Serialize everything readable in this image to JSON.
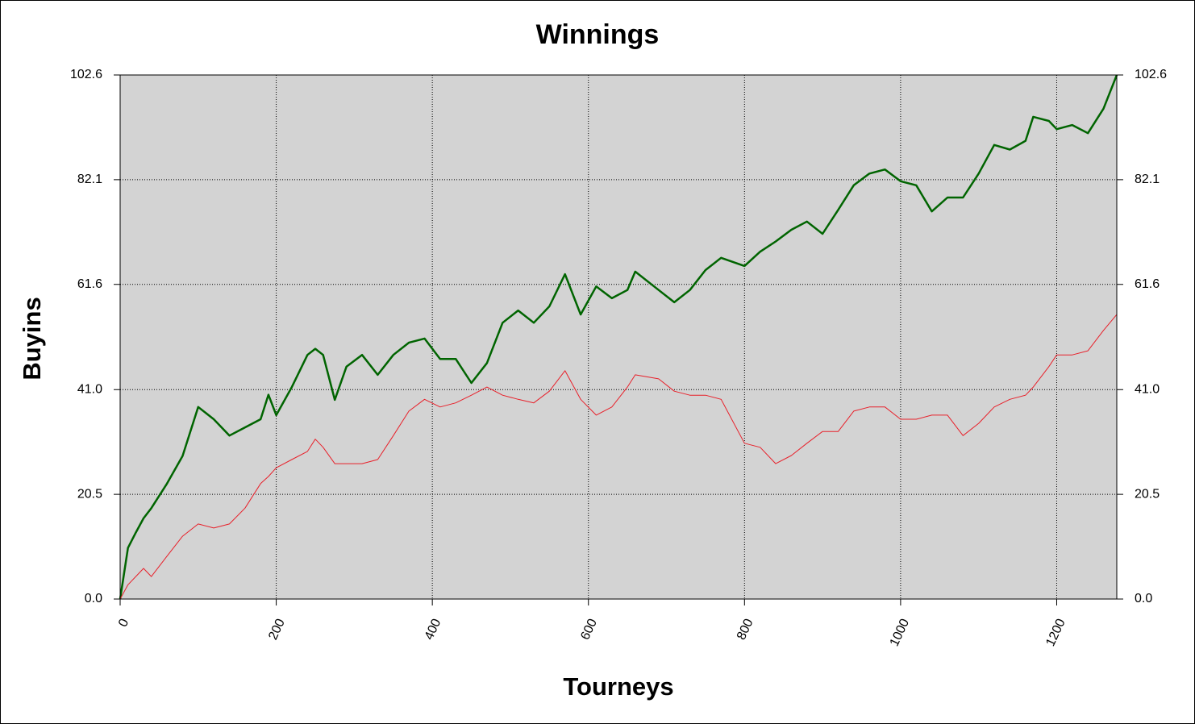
{
  "chart_data": {
    "type": "line",
    "title": "Winnings",
    "x_label": "Tourneys",
    "y_label": "Buyins",
    "x": [
      0,
      10,
      20,
      30,
      40,
      60,
      80,
      100,
      120,
      140,
      160,
      180,
      190,
      200,
      220,
      240,
      250,
      260,
      275,
      290,
      310,
      330,
      350,
      370,
      390,
      410,
      430,
      450,
      470,
      490,
      510,
      530,
      550,
      570,
      590,
      610,
      630,
      650,
      660,
      690,
      710,
      730,
      750,
      770,
      800,
      820,
      840,
      860,
      880,
      900,
      920,
      940,
      960,
      980,
      1000,
      1020,
      1040,
      1060,
      1080,
      1100,
      1120,
      1140,
      1160,
      1170,
      1190,
      1200,
      1220,
      1240,
      1260,
      1277
    ],
    "series": [
      {
        "color": "#006400",
        "width": 2.5,
        "values": [
          0,
          10,
          13,
          15.8,
          17.8,
          22.6,
          28,
          37.6,
          35.2,
          32,
          33.6,
          35.2,
          40,
          36,
          41.5,
          47.8,
          49,
          47.8,
          39,
          45.5,
          47.8,
          43.9,
          47.8,
          50.2,
          51,
          47,
          47,
          42.3,
          46.2,
          54.1,
          56.5,
          54.1,
          57.3,
          63.6,
          55.7,
          61.2,
          58.9,
          60.5,
          64.1,
          60.5,
          58.1,
          60.5,
          64.4,
          66.8,
          65.2,
          68,
          70,
          72.3,
          73.9,
          71.5,
          76.2,
          81,
          83.3,
          84.1,
          81.8,
          81,
          75.9,
          78.6,
          78.6,
          83.3,
          88.9,
          88,
          89.7,
          94.4,
          93.6,
          92,
          92.8,
          91.2,
          96,
          102.6
        ]
      },
      {
        "color": "#e8202a",
        "width": 1,
        "values": [
          0,
          2.8,
          4.4,
          6,
          4.4,
          8.4,
          12.3,
          14.7,
          13.9,
          14.7,
          17.8,
          22.6,
          24,
          25.7,
          27.3,
          28.9,
          31.3,
          29.7,
          26.5,
          26.5,
          26.5,
          27.3,
          32,
          36.8,
          39.1,
          37.6,
          38.4,
          39.9,
          41.5,
          39.9,
          39.1,
          38.4,
          40.7,
          44.7,
          39.1,
          36,
          37.6,
          41.5,
          43.9,
          43.1,
          40.7,
          39.9,
          39.9,
          39.1,
          30.5,
          29.7,
          26.5,
          28.1,
          30.5,
          32.8,
          32.8,
          36.8,
          37.6,
          37.6,
          35.2,
          35.2,
          36,
          36,
          32,
          34.4,
          37.6,
          39.1,
          39.9,
          41.5,
          45.5,
          47.8,
          47.8,
          48.6,
          52.6,
          55.7
        ]
      }
    ],
    "xlim": [
      0,
      1277
    ],
    "xticks": [
      0,
      200,
      400,
      600,
      800,
      1000,
      1200
    ],
    "ylim": [
      0,
      102.6
    ],
    "yticks": [
      {
        "value": 0,
        "label": "0.0"
      },
      20.5,
      {
        "value": 41,
        "label": "41.0"
      },
      61.6,
      82.1,
      102.6
    ],
    "y2lim": [
      0,
      102.6
    ],
    "y2ticks": [
      {
        "value": 0,
        "label": "0.0"
      },
      20.5,
      {
        "value": 41,
        "label": "41.0"
      },
      61.6,
      82.1,
      102.6
    ],
    "grid": true,
    "plot_background": "#d3d3d3"
  }
}
